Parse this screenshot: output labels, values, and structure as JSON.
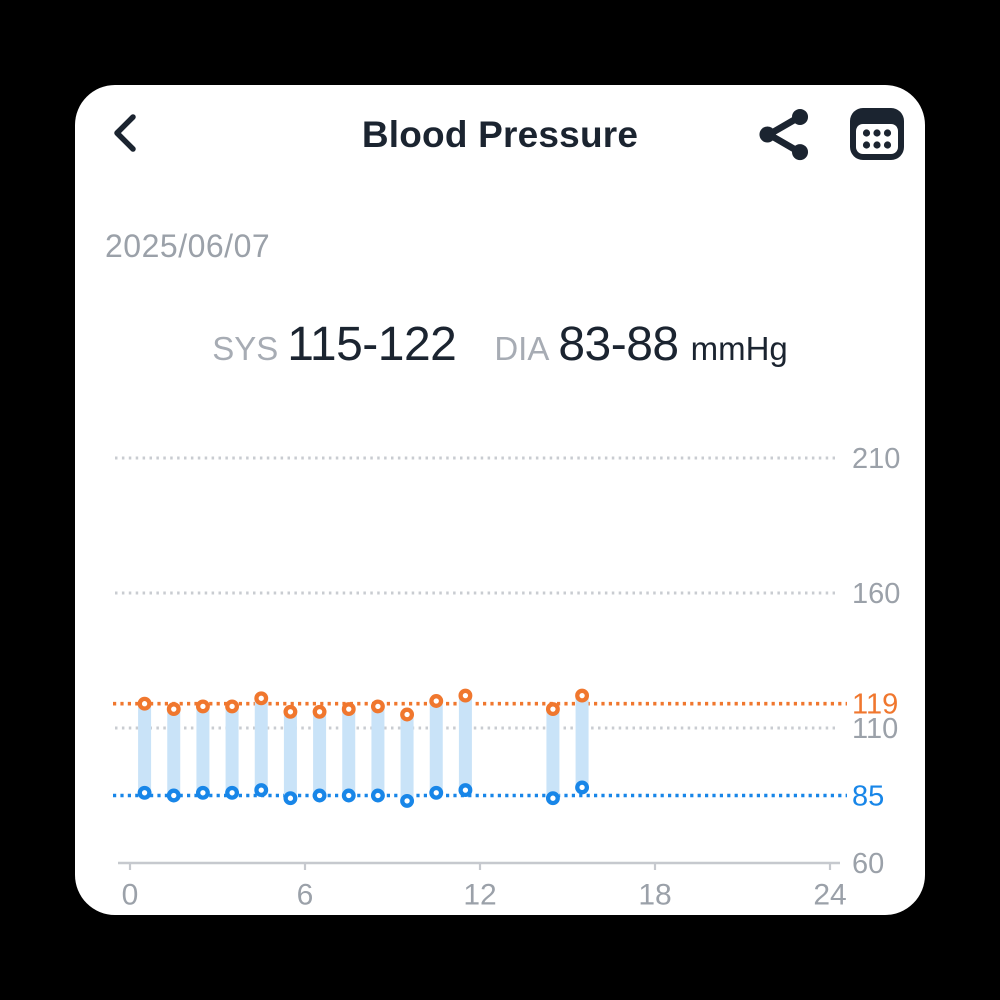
{
  "header": {
    "title": "Blood Pressure",
    "back_icon": "chevron-left",
    "share_icon": "share-nodes",
    "calendar_icon": "calendar-grid"
  },
  "date": "2025/06/07",
  "summary": {
    "sys_label": "SYS",
    "sys_value": "115-122",
    "dia_label": "DIA",
    "dia_value": "83-88",
    "unit": "mmHg"
  },
  "colors": {
    "background": "#000000",
    "card": "#ffffff",
    "ink": "#1B2430",
    "muted_text": "#9BA1A9",
    "sys_orange": "#F0772E",
    "dia_blue": "#1886E8",
    "band_blue": "#C9E3F8",
    "grid_gray": "#C9CCD1",
    "axis_gray": "#C6C9CE"
  },
  "chart_data": {
    "type": "bar",
    "subtype": "blood-pressure-range-bars",
    "title": "",
    "xlabel": "",
    "ylabel": "",
    "unit": "mmHg",
    "xlim": [
      0,
      24
    ],
    "ylim": [
      60,
      210
    ],
    "x_ticks": [
      0,
      6,
      12,
      18,
      24
    ],
    "grid": "dotted-horizontal",
    "legend": "none",
    "x_hours": [
      0.5,
      1.5,
      2.5,
      3.5,
      4.5,
      5.5,
      6.5,
      7.5,
      8.5,
      9.5,
      10.5,
      11.5,
      14.5,
      15.5
    ],
    "series": [
      {
        "name": "SYS",
        "color": "#F0772E",
        "values": [
          119,
          117,
          118,
          118,
          121,
          116,
          116,
          117,
          118,
          115,
          120,
          122,
          117,
          122
        ]
      },
      {
        "name": "DIA",
        "color": "#1886E8",
        "values": [
          86,
          85,
          86,
          86,
          87,
          84,
          85,
          85,
          85,
          83,
          86,
          87,
          84,
          88
        ]
      }
    ],
    "band_color": "#C9E3F8",
    "gridline_values": [
      210,
      160,
      110
    ],
    "reference_lines": [
      {
        "value": 119,
        "label": "119",
        "color": "#F0772E"
      },
      {
        "value": 85,
        "label": "85",
        "color": "#1886E8"
      }
    ],
    "y_axis_labels": [
      {
        "value": 210,
        "label": "210",
        "color": "#9BA1A9"
      },
      {
        "value": 160,
        "label": "160",
        "color": "#9BA1A9"
      },
      {
        "value": 119,
        "label": "119",
        "color": "#F0772E"
      },
      {
        "value": 110,
        "label": "110",
        "color": "#9BA1A9"
      },
      {
        "value": 85,
        "label": "85",
        "color": "#1886E8"
      },
      {
        "value": 60,
        "label": "60",
        "color": "#9BA1A9"
      }
    ],
    "x_tick_labels": [
      "0",
      "6",
      "12",
      "18",
      "24"
    ]
  }
}
